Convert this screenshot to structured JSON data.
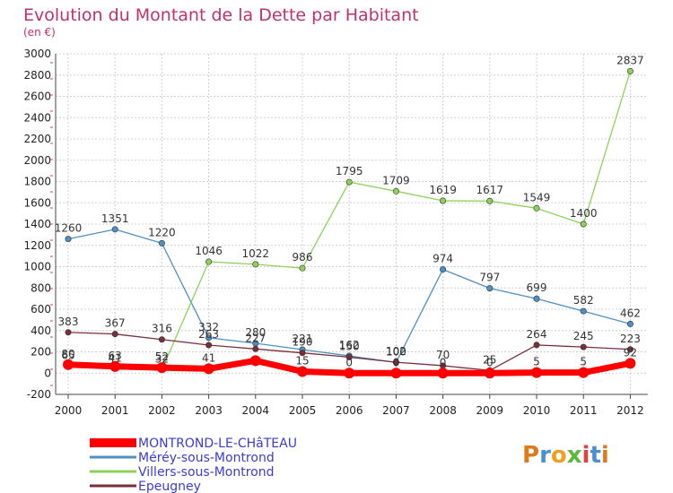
{
  "chart_data": {
    "type": "line",
    "title": "Evolution du Montant de la Dette par Habitant",
    "subtitle": "(en €)",
    "xlabel": "",
    "ylabel": "",
    "categories": [
      "2000",
      "2001",
      "2002",
      "2003",
      "2004",
      "2005",
      "2006",
      "2007",
      "2008",
      "2009",
      "2010",
      "2011",
      "2012"
    ],
    "ylim": [
      -200,
      3000
    ],
    "yticks": [
      -200,
      0,
      200,
      400,
      600,
      800,
      1000,
      1200,
      1400,
      1600,
      1800,
      2000,
      2200,
      2400,
      2600,
      2800,
      3000
    ],
    "grid": true,
    "legend_position": "bottom-left",
    "series": [
      {
        "name": "Méréy-sous-Montrond",
        "color": "#4d8fc7",
        "values": [
          1260,
          1351,
          1220,
          332,
          280,
          221,
          162,
          100,
          974,
          797,
          699,
          582,
          462
        ],
        "labels": [
          "1260",
          "1351",
          "1220",
          "332",
          "280",
          "221",
          "162",
          "100",
          "974",
          "797",
          "699",
          "582",
          "462"
        ]
      },
      {
        "name": "Villers-sous-Montrond",
        "color": "#8dd15a",
        "values": [
          65,
          41,
          32,
          1046,
          1022,
          986,
          1795,
          1709,
          1619,
          1617,
          1549,
          1400,
          2837
        ],
        "labels": [
          "65",
          "41",
          "32",
          "1046",
          "1022",
          "986",
          "1795",
          "1709",
          "1619",
          "1617",
          "1549",
          "1400",
          "2837"
        ]
      },
      {
        "name": "Epeugney",
        "color": "#7a2e3a",
        "values": [
          383,
          367,
          316,
          263,
          227,
          190,
          150,
          102,
          70,
          25,
          264,
          245,
          223
        ],
        "labels": [
          "383",
          "367",
          "316",
          "263",
          "227",
          "190",
          "150",
          "102",
          "70",
          "25",
          "264",
          "245",
          "223"
        ]
      },
      {
        "name": "MONTROND-LE-CHâTEAU",
        "color": "#ff0000",
        "values": [
          80,
          63,
          52,
          41,
          117,
          15,
          0,
          0,
          0,
          0,
          5,
          5,
          92
        ],
        "labels": [
          "80",
          "63",
          "52",
          "41",
          "",
          "15",
          "0",
          "0",
          "0",
          "0",
          "5",
          "5",
          "92"
        ]
      }
    ]
  },
  "legend": [
    {
      "name": "MONTROND-LE-CHâTEAU",
      "color": "#ff0000"
    },
    {
      "name": "Méréy-sous-Montrond",
      "color": "#4d8fc7"
    },
    {
      "name": "Villers-sous-Montrond",
      "color": "#8dd15a"
    },
    {
      "name": "Epeugney",
      "color": "#7a2e3a"
    }
  ],
  "logo": {
    "text": "Proxiti"
  },
  "colors": {
    "title": "#c0306a",
    "legend_text": "#3b3bd4",
    "grid": "#d0d0d0"
  }
}
